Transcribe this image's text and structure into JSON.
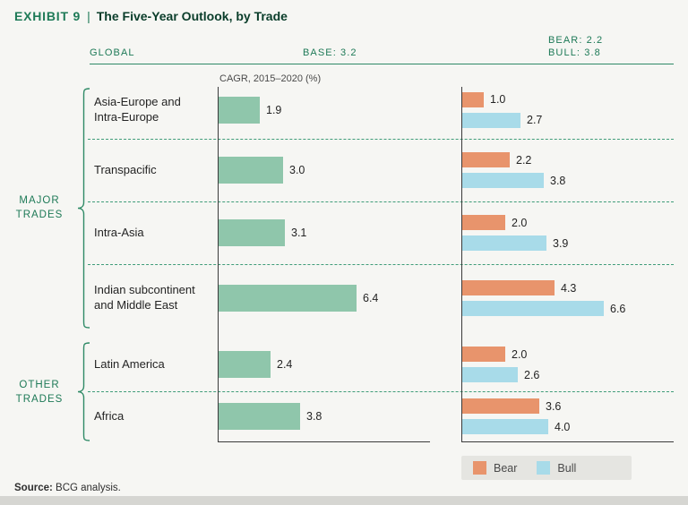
{
  "header": {
    "exhibit_label": "EXHIBIT 9",
    "separator": "|",
    "title": "The Five-Year Outlook, by Trade"
  },
  "scenario_header": {
    "global_label": "GLOBAL",
    "base_label": "BASE: 3.2",
    "bear_label": "BEAR: 2.2",
    "bull_label": "BULL: 3.8"
  },
  "source": {
    "label": "Source:",
    "text": " BCG analysis."
  },
  "chart_data": {
    "type": "bar",
    "orientation": "horizontal",
    "axis_note": "CAGR, 2015–2020 (%)",
    "global_summary": {
      "base": 3.2,
      "bear": 2.2,
      "bull": 3.8
    },
    "categories": [
      "Asia-Europe and\nIntra-Europe",
      "Transpacific",
      "Intra-Asia",
      "Indian subcontinent\nand Middle East",
      "Latin America",
      "Africa"
    ],
    "groups": [
      {
        "label": "MAJOR TRADES",
        "row_indices": [
          0,
          1,
          2,
          3
        ]
      },
      {
        "label": "OTHER TRADES",
        "row_indices": [
          4,
          5
        ]
      }
    ],
    "series": [
      {
        "name": "Base",
        "color": "#8fc6ab",
        "values": [
          1.9,
          3.0,
          3.1,
          6.4,
          2.4,
          3.8
        ]
      },
      {
        "name": "Bear",
        "color": "#e8946c",
        "values": [
          1.0,
          2.2,
          2.0,
          4.3,
          2.0,
          3.6
        ]
      },
      {
        "name": "Bull",
        "color": "#a8dbe9",
        "values": [
          2.7,
          3.8,
          3.9,
          6.6,
          2.6,
          4.0
        ]
      }
    ],
    "legend": [
      {
        "label": "Bear",
        "color": "#e8946c"
      },
      {
        "label": "Bull",
        "color": "#a8dbe9"
      }
    ],
    "value_format": "0.0"
  }
}
